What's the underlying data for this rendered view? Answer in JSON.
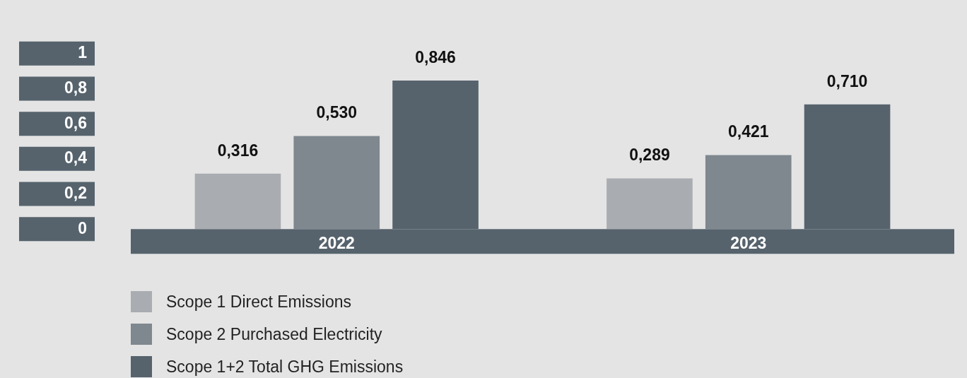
{
  "chart_data": {
    "type": "bar",
    "categories": [
      "2022",
      "2023"
    ],
    "series": [
      {
        "name": "Scope 1 Direct Emissions",
        "color": "#a9acb0",
        "values": [
          0.316,
          0.289
        ],
        "value_labels": [
          "0,316",
          "0,289"
        ]
      },
      {
        "name": "Scope 2 Purchased Electricity",
        "color": "#7f878f",
        "values": [
          0.53,
          0.421
        ],
        "value_labels": [
          "0,530",
          "0,421"
        ]
      },
      {
        "name": "Scope 1+2 Total GHG Emissions",
        "color": "#56636d",
        "values": [
          0.846,
          0.71
        ],
        "value_labels": [
          "0,846",
          "0,710"
        ]
      }
    ],
    "ylim": [
      0,
      1
    ],
    "yticks": [
      {
        "value": 0,
        "label": "0"
      },
      {
        "value": 0.2,
        "label": "0,2"
      },
      {
        "value": 0.4,
        "label": "0,4"
      },
      {
        "value": 0.6,
        "label": "0,6"
      },
      {
        "value": 0.8,
        "label": "0,8"
      },
      {
        "value": 1,
        "label": "1"
      }
    ],
    "grid": false,
    "legend": "bottom left"
  }
}
